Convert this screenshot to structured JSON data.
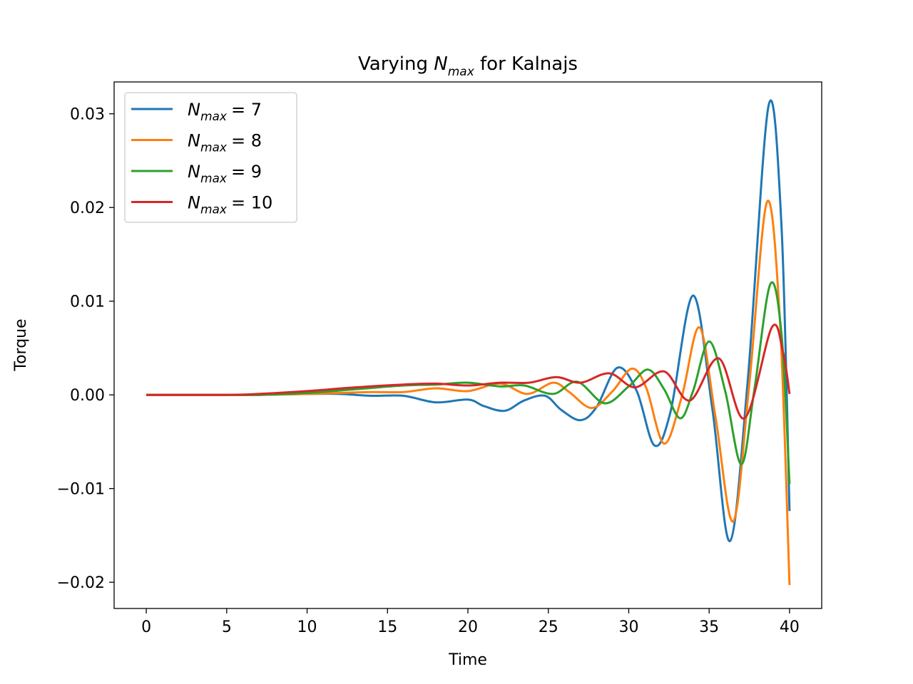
{
  "chart_data": {
    "type": "line",
    "title_prefix": "Varying ",
    "title_var": "N",
    "title_sub": "max",
    "title_suffix": " for Kalnajs",
    "xlabel": "Time",
    "ylabel": "Torque",
    "xlim": [
      -2,
      42
    ],
    "ylim": [
      -0.0228,
      0.0334
    ],
    "xticks": [
      0,
      5,
      10,
      15,
      20,
      25,
      30,
      35,
      40
    ],
    "xtick_labels": [
      "0",
      "5",
      "10",
      "15",
      "20",
      "25",
      "30",
      "35",
      "40"
    ],
    "yticks": [
      -0.02,
      -0.01,
      0.0,
      0.01,
      0.02,
      0.03
    ],
    "ytick_labels": [
      "−0.02",
      "−0.01",
      "0.00",
      "0.01",
      "0.02",
      "0.03"
    ],
    "grid": false,
    "legend_position": "upper-left",
    "series": [
      {
        "name_var": "N",
        "name_sub": "max",
        "name_value": "= 7",
        "color": "#1f77b4",
        "points": [
          [
            0,
            0
          ],
          [
            5,
            0
          ],
          [
            7,
            0
          ],
          [
            10,
            0.0001
          ],
          [
            12,
            0.0001
          ],
          [
            14,
            -0.0001
          ],
          [
            16,
            -0.0001
          ],
          [
            18,
            -0.0008
          ],
          [
            20,
            -0.0005
          ],
          [
            21,
            -0.0012
          ],
          [
            22.3,
            -0.0017
          ],
          [
            23.5,
            -0.0006
          ],
          [
            24.8,
            -0.0001
          ],
          [
            25.8,
            -0.0016
          ],
          [
            27,
            -0.0027
          ],
          [
            28,
            -0.0013
          ],
          [
            29.3,
            0.0029
          ],
          [
            30.5,
            0.0004
          ],
          [
            31.6,
            -0.0054
          ],
          [
            32.6,
            -0.0018
          ],
          [
            34,
            0.0106
          ],
          [
            35.2,
            -0.0015
          ],
          [
            36.3,
            -0.0156
          ],
          [
            37.4,
            0.0015
          ],
          [
            38.7,
            0.0309
          ],
          [
            39.5,
            0.018
          ],
          [
            40,
            -0.0124
          ]
        ]
      },
      {
        "name_var": "N",
        "name_sub": "max",
        "name_value": "= 8",
        "color": "#ff7f0e",
        "points": [
          [
            0,
            0
          ],
          [
            5,
            0
          ],
          [
            7,
            0
          ],
          [
            10,
            0.0001
          ],
          [
            12,
            0.0002
          ],
          [
            14,
            0.0003
          ],
          [
            16,
            0.0003
          ],
          [
            18,
            0.0007
          ],
          [
            20,
            0.0004
          ],
          [
            22,
            0.0012
          ],
          [
            23.7,
            0.0001
          ],
          [
            25.3,
            0.0013
          ],
          [
            26.3,
            0.0003
          ],
          [
            27.7,
            -0.0014
          ],
          [
            29,
            0.0004
          ],
          [
            30.2,
            0.0028
          ],
          [
            31.1,
            0.0007
          ],
          [
            32.2,
            -0.0052
          ],
          [
            33.3,
            -0.0002
          ],
          [
            34.4,
            0.0072
          ],
          [
            35.4,
            -0.0024
          ],
          [
            36.5,
            -0.0135
          ],
          [
            37.5,
            0.0012
          ],
          [
            38.6,
            0.0206
          ],
          [
            39.4,
            0.008
          ],
          [
            40,
            -0.0203
          ]
        ]
      },
      {
        "name_var": "N",
        "name_sub": "max",
        "name_value": "= 9",
        "color": "#2ca02c",
        "points": [
          [
            0,
            0
          ],
          [
            5,
            0
          ],
          [
            7,
            0
          ],
          [
            10,
            0.0002
          ],
          [
            13,
            0.0006
          ],
          [
            16,
            0.001
          ],
          [
            18,
            0.0011
          ],
          [
            20,
            0.0013
          ],
          [
            22,
            0.0009
          ],
          [
            23.5,
            0.001
          ],
          [
            25.3,
            0.0001
          ],
          [
            26.8,
            0.0014
          ],
          [
            28.5,
            -0.0009
          ],
          [
            30,
            0.0009
          ],
          [
            31.2,
            0.0027
          ],
          [
            32.2,
            0.0006
          ],
          [
            33.2,
            -0.0025
          ],
          [
            34,
            0.0004
          ],
          [
            35,
            0.0057
          ],
          [
            36,
            0.0004
          ],
          [
            37,
            -0.0074
          ],
          [
            37.8,
            0.0004
          ],
          [
            38.8,
            0.0118
          ],
          [
            39.5,
            0.0065
          ],
          [
            40,
            -0.0095
          ]
        ]
      },
      {
        "name_var": "N",
        "name_sub": "max",
        "name_value": "= 10",
        "color": "#d62728",
        "points": [
          [
            0,
            0
          ],
          [
            5,
            0
          ],
          [
            7,
            0.0001
          ],
          [
            10,
            0.0004
          ],
          [
            13,
            0.0008
          ],
          [
            16,
            0.0011
          ],
          [
            18,
            0.0012
          ],
          [
            20,
            0.001
          ],
          [
            22,
            0.0013
          ],
          [
            23.8,
            0.0013
          ],
          [
            25.5,
            0.0019
          ],
          [
            27,
            0.0013
          ],
          [
            28.8,
            0.0023
          ],
          [
            30.4,
            0.0008
          ],
          [
            32.2,
            0.0025
          ],
          [
            33.8,
            -0.0006
          ],
          [
            35.6,
            0.0039
          ],
          [
            37.2,
            -0.0025
          ],
          [
            38.9,
            0.0072
          ],
          [
            39.6,
            0.0045
          ],
          [
            40,
            0.0001
          ]
        ]
      }
    ]
  }
}
